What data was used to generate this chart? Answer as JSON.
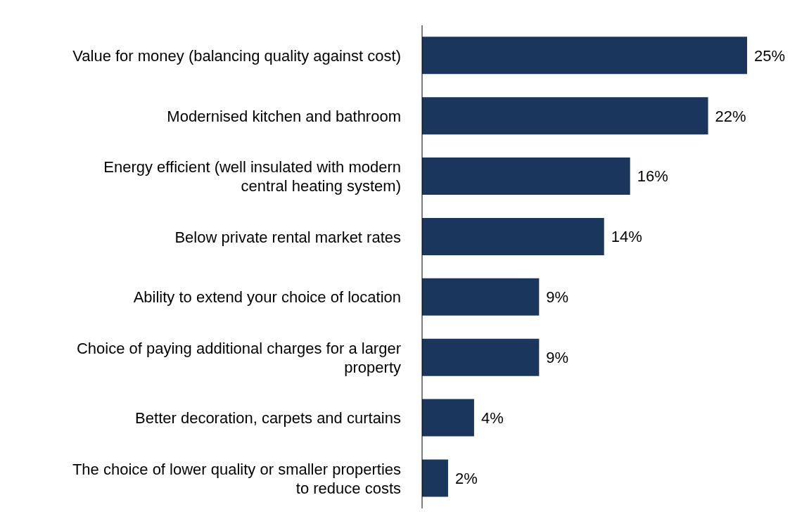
{
  "chart_data": {
    "type": "bar",
    "orientation": "horizontal",
    "categories": [
      "Value for money (balancing quality against cost)",
      "Modernised kitchen and bathroom",
      "Energy efficient (well insulated with modern central heating system)",
      "Below private rental market rates",
      "Ability to extend your choice of location",
      "Choice of paying additional charges for a larger property",
      "Better decoration, carpets and curtains",
      "The choice of lower quality or smaller properties to reduce costs"
    ],
    "values": [
      25,
      22,
      16,
      14,
      9,
      9,
      4,
      2
    ],
    "value_labels": [
      "25%",
      "22%",
      "16%",
      "14%",
      "9%",
      "9%",
      "4%",
      "2%"
    ],
    "color": "#1b365d",
    "grid": false,
    "legend": false
  }
}
